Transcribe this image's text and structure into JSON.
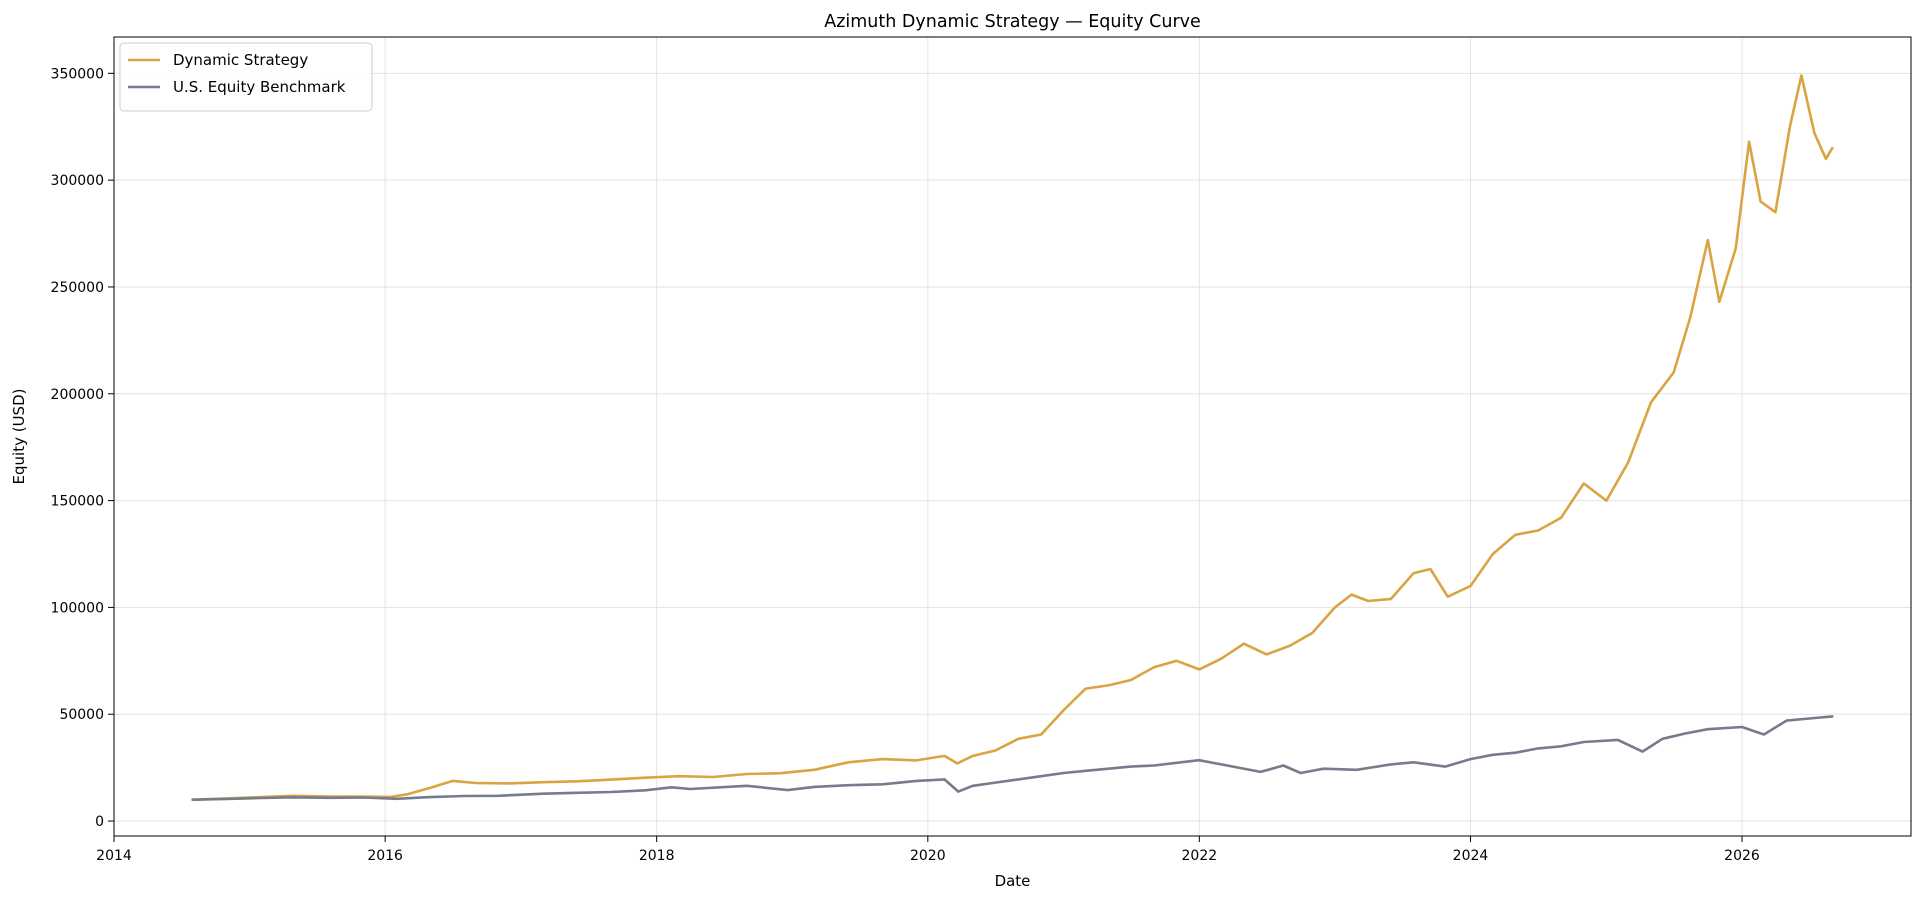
{
  "chart_data": {
    "type": "line",
    "title": "Azimuth Dynamic Strategy — Equity Curve",
    "xlabel": "Date",
    "ylabel": "Equity (USD)",
    "x_type": "date",
    "xlim": [
      "2014-01-01",
      "2027-04-01"
    ],
    "ylim": [
      -7000,
      367000
    ],
    "xticks": [
      {
        "date": "2014-01-01",
        "label": "2014"
      },
      {
        "date": "2016-01-01",
        "label": "2016"
      },
      {
        "date": "2018-01-01",
        "label": "2018"
      },
      {
        "date": "2020-01-01",
        "label": "2020"
      },
      {
        "date": "2022-01-01",
        "label": "2022"
      },
      {
        "date": "2024-01-01",
        "label": "2024"
      },
      {
        "date": "2026-01-01",
        "label": "2026"
      }
    ],
    "yticks": [
      0,
      50000,
      100000,
      150000,
      200000,
      250000,
      300000,
      350000
    ],
    "grid": true,
    "legend_position": "top-left",
    "series": [
      {
        "name": "Dynamic Strategy",
        "color": "#D9A441",
        "points": [
          [
            "2014-08-01",
            10000
          ],
          [
            "2014-11-01",
            10600
          ],
          [
            "2015-02-01",
            11200
          ],
          [
            "2015-05-01",
            11800
          ],
          [
            "2015-08-01",
            11500
          ],
          [
            "2015-11-01",
            11400
          ],
          [
            "2016-01-15",
            11300
          ],
          [
            "2016-03-01",
            12500
          ],
          [
            "2016-05-01",
            15500
          ],
          [
            "2016-07-01",
            18800
          ],
          [
            "2016-09-01",
            17800
          ],
          [
            "2016-12-01",
            17600
          ],
          [
            "2017-03-01",
            18200
          ],
          [
            "2017-06-01",
            18600
          ],
          [
            "2017-09-01",
            19400
          ],
          [
            "2017-12-01",
            20300
          ],
          [
            "2018-03-01",
            21000
          ],
          [
            "2018-06-01",
            20600
          ],
          [
            "2018-09-01",
            22000
          ],
          [
            "2018-12-01",
            22400
          ],
          [
            "2019-03-01",
            24000
          ],
          [
            "2019-06-01",
            27500
          ],
          [
            "2019-09-01",
            29000
          ],
          [
            "2019-12-01",
            28400
          ],
          [
            "2020-02-15",
            30500
          ],
          [
            "2020-03-20",
            27000
          ],
          [
            "2020-05-01",
            30500
          ],
          [
            "2020-07-01",
            33000
          ],
          [
            "2020-09-01",
            38500
          ],
          [
            "2020-11-01",
            40500
          ],
          [
            "2021-01-01",
            52000
          ],
          [
            "2021-03-01",
            62000
          ],
          [
            "2021-05-01",
            63500
          ],
          [
            "2021-07-01",
            66000
          ],
          [
            "2021-09-01",
            72000
          ],
          [
            "2021-11-01",
            75000
          ],
          [
            "2022-01-01",
            71000
          ],
          [
            "2022-03-01",
            76000
          ],
          [
            "2022-05-01",
            83000
          ],
          [
            "2022-07-01",
            78000
          ],
          [
            "2022-09-01",
            82000
          ],
          [
            "2022-11-01",
            88000
          ],
          [
            "2023-01-01",
            100000
          ],
          [
            "2023-02-15",
            106000
          ],
          [
            "2023-04-01",
            103000
          ],
          [
            "2023-06-01",
            104000
          ],
          [
            "2023-08-01",
            116000
          ],
          [
            "2023-09-15",
            118000
          ],
          [
            "2023-11-01",
            105000
          ],
          [
            "2024-01-01",
            110000
          ],
          [
            "2024-03-01",
            125000
          ],
          [
            "2024-05-01",
            134000
          ],
          [
            "2024-07-01",
            136000
          ],
          [
            "2024-09-01",
            142000
          ],
          [
            "2024-11-01",
            158000
          ],
          [
            "2025-01-01",
            150000
          ],
          [
            "2025-03-01",
            168000
          ],
          [
            "2025-05-01",
            196000
          ],
          [
            "2025-07-01",
            210000
          ],
          [
            "2025-08-15",
            236000
          ],
          [
            "2025-10-01",
            272000
          ],
          [
            "2025-11-01",
            243000
          ],
          [
            "2025-12-15",
            268000
          ],
          [
            "2026-01-20",
            318000
          ],
          [
            "2026-02-20",
            290000
          ],
          [
            "2026-04-01",
            285000
          ],
          [
            "2026-05-10",
            325000
          ],
          [
            "2026-06-10",
            349000
          ],
          [
            "2026-07-15",
            322000
          ],
          [
            "2026-08-15",
            310000
          ],
          [
            "2026-09-01",
            315000
          ]
        ]
      },
      {
        "name": "U.S. Equity Benchmark",
        "color": "#757C8C",
        "points": [
          [
            "2014-08-01",
            10000
          ],
          [
            "2014-11-01",
            10300
          ],
          [
            "2015-02-01",
            10800
          ],
          [
            "2015-05-01",
            11100
          ],
          [
            "2015-08-01",
            10900
          ],
          [
            "2015-11-01",
            11000
          ],
          [
            "2016-02-01",
            10400
          ],
          [
            "2016-05-01",
            11200
          ],
          [
            "2016-08-01",
            11700
          ],
          [
            "2016-11-01",
            11800
          ],
          [
            "2017-03-01",
            12800
          ],
          [
            "2017-06-01",
            13200
          ],
          [
            "2017-09-01",
            13600
          ],
          [
            "2017-12-01",
            14400
          ],
          [
            "2018-02-10",
            15800
          ],
          [
            "2018-04-01",
            15000
          ],
          [
            "2018-09-01",
            16500
          ],
          [
            "2018-12-20",
            14500
          ],
          [
            "2019-03-01",
            16000
          ],
          [
            "2019-06-01",
            16800
          ],
          [
            "2019-09-01",
            17200
          ],
          [
            "2019-12-01",
            18800
          ],
          [
            "2020-02-15",
            19500
          ],
          [
            "2020-03-23",
            13800
          ],
          [
            "2020-05-01",
            16500
          ],
          [
            "2020-07-01",
            18000
          ],
          [
            "2020-09-01",
            19500
          ],
          [
            "2020-11-01",
            21000
          ],
          [
            "2021-01-01",
            22500
          ],
          [
            "2021-03-01",
            23500
          ],
          [
            "2021-05-01",
            24500
          ],
          [
            "2021-07-01",
            25500
          ],
          [
            "2021-09-01",
            26000
          ],
          [
            "2021-12-31",
            28500
          ],
          [
            "2022-03-01",
            26500
          ],
          [
            "2022-06-15",
            23000
          ],
          [
            "2022-08-15",
            26000
          ],
          [
            "2022-10-01",
            22500
          ],
          [
            "2022-12-01",
            24500
          ],
          [
            "2023-03-01",
            24000
          ],
          [
            "2023-06-01",
            26500
          ],
          [
            "2023-08-01",
            27500
          ],
          [
            "2023-10-25",
            25500
          ],
          [
            "2024-01-01",
            29000
          ],
          [
            "2024-03-01",
            31000
          ],
          [
            "2024-05-01",
            32000
          ],
          [
            "2024-07-01",
            34000
          ],
          [
            "2024-09-01",
            35000
          ],
          [
            "2024-11-01",
            37000
          ],
          [
            "2025-02-01",
            38000
          ],
          [
            "2025-04-08",
            32500
          ],
          [
            "2025-06-01",
            38500
          ],
          [
            "2025-08-01",
            41000
          ],
          [
            "2025-10-01",
            43000
          ],
          [
            "2026-01-01",
            44000
          ],
          [
            "2026-03-01",
            40500
          ],
          [
            "2026-05-01",
            47000
          ],
          [
            "2026-07-01",
            48000
          ],
          [
            "2026-09-01",
            49000
          ]
        ]
      }
    ]
  }
}
